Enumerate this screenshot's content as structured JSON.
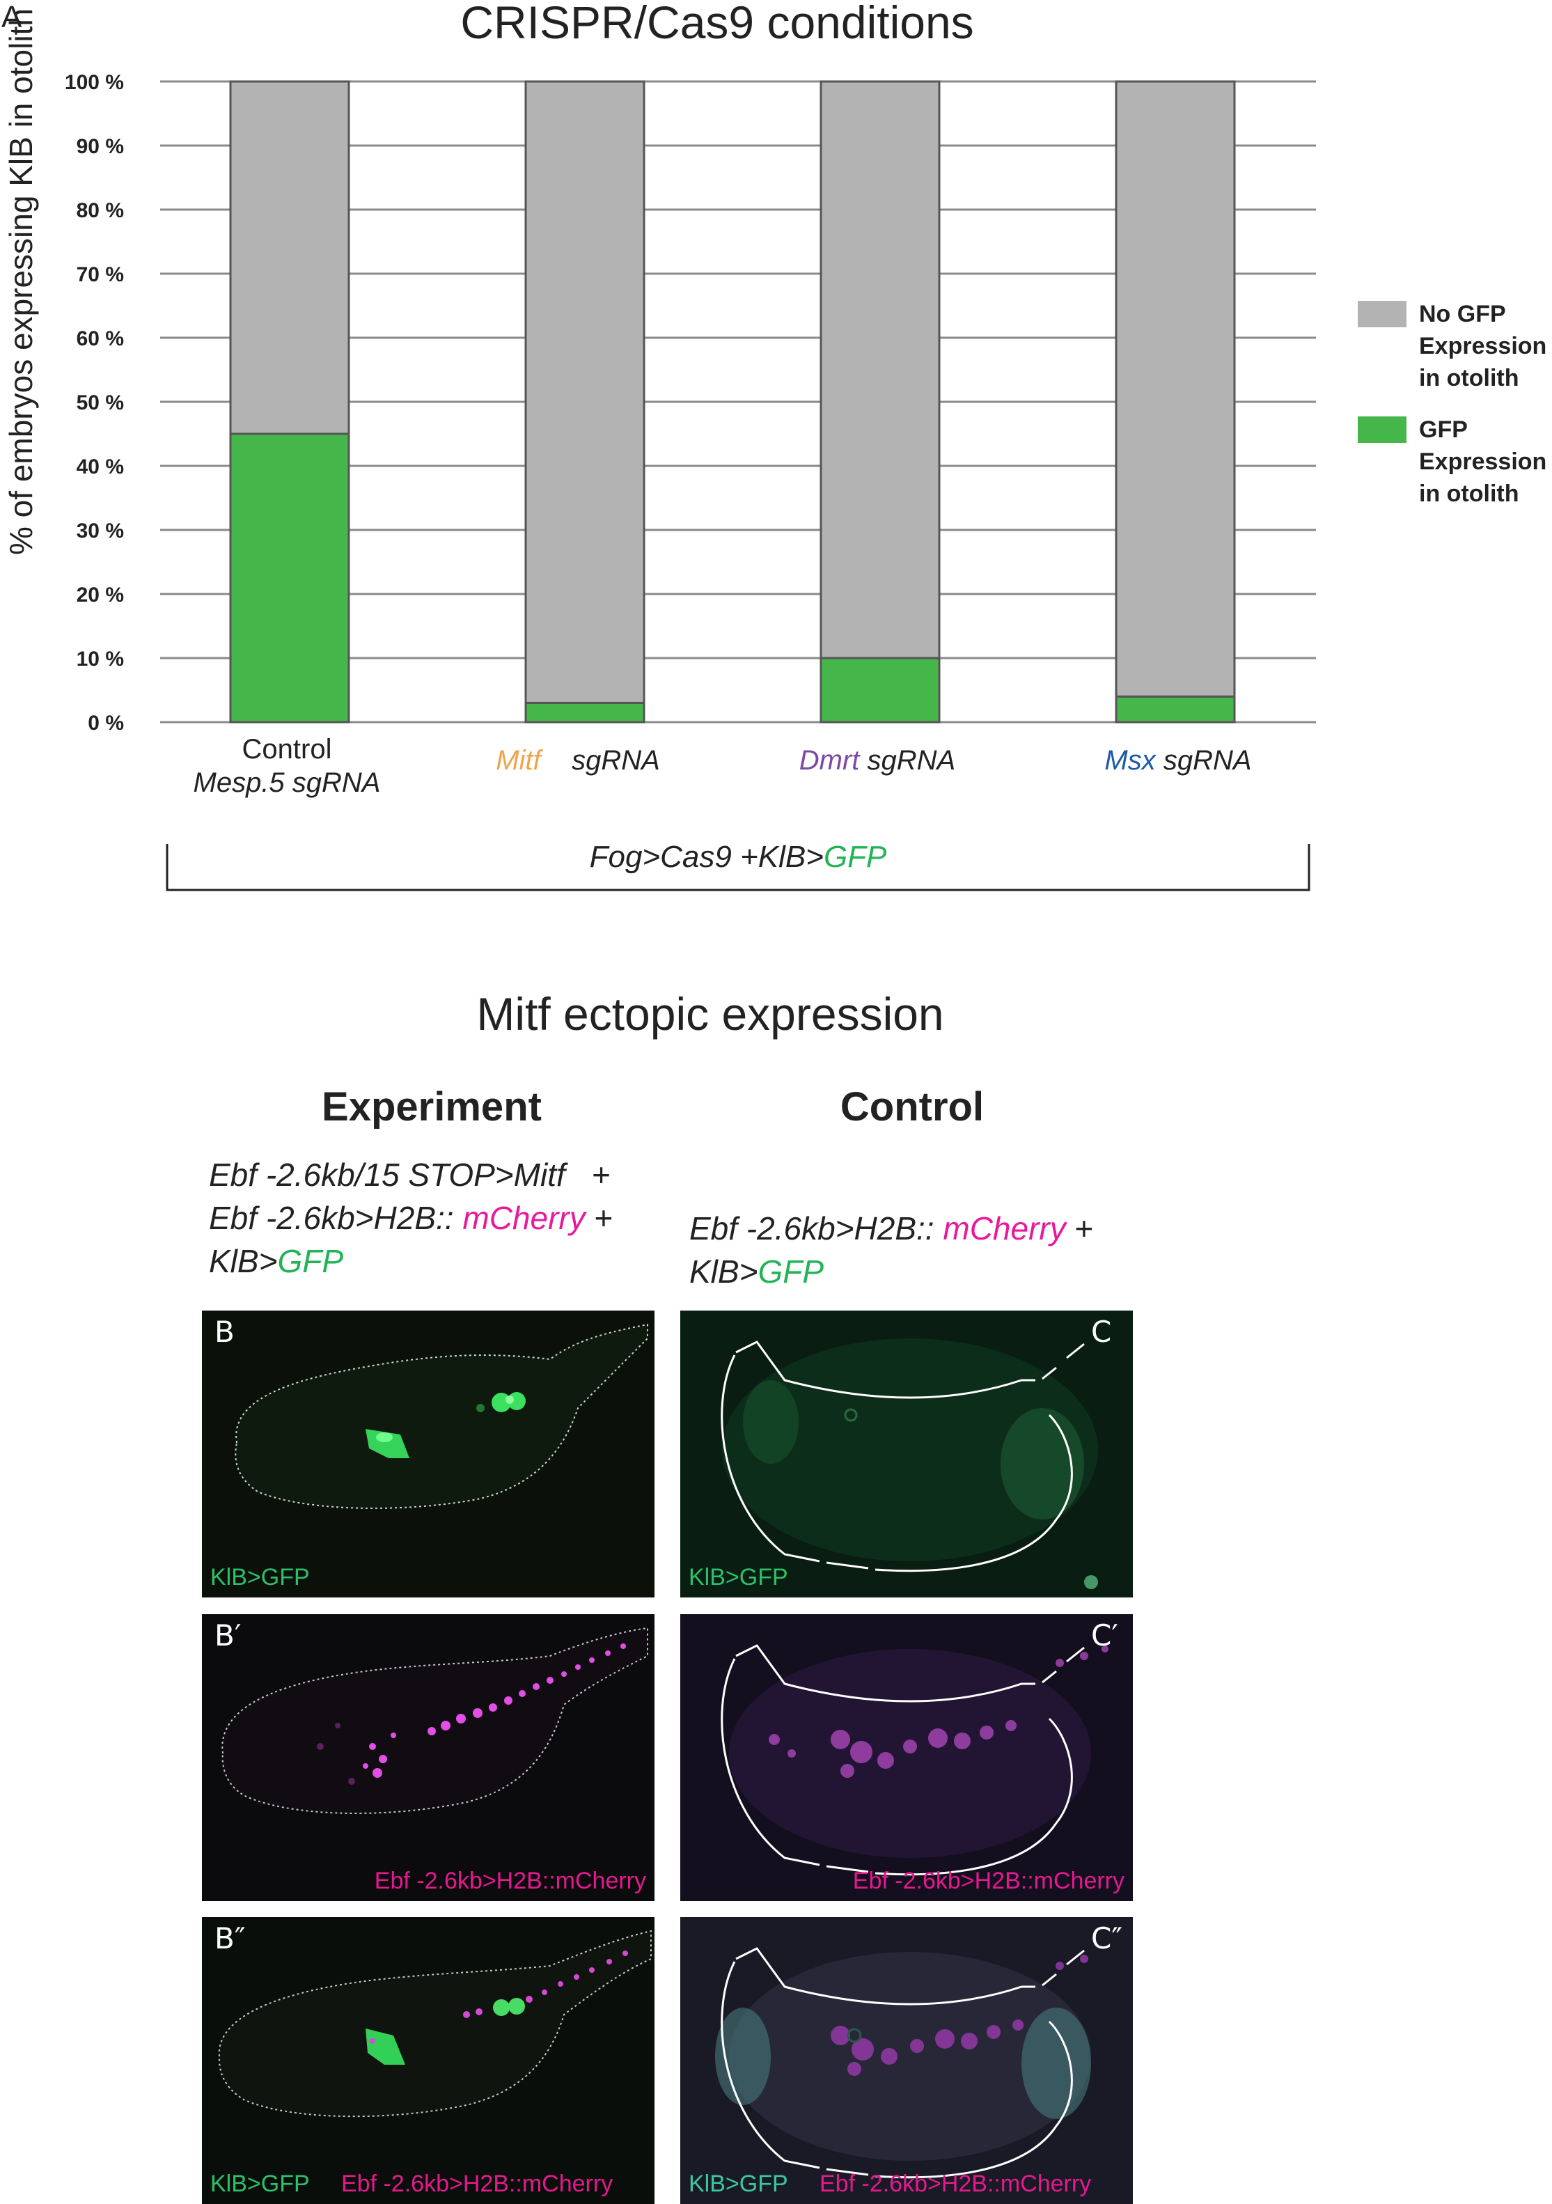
{
  "panel_a": {
    "letter": "A",
    "title": "CRISPR/Cas9 conditions",
    "xaxis_group_label": "Fog>Cas9 +KlB>GFP",
    "legend": [
      {
        "label_lines": [
          "No GFP",
          "Expression",
          "in otolith"
        ],
        "color": "#b3b3b3"
      },
      {
        "label_lines": [
          "GFP",
          "Expression",
          "in otolith"
        ],
        "color": "#45b649"
      }
    ],
    "category_labels": [
      {
        "line1": "Control",
        "line2": "Mesp.5 sgRNA"
      },
      {
        "gene": "Mitf",
        "suffix": "sgRNA",
        "gene_color": "#f0a44a"
      },
      {
        "gene": "Dmrt",
        "suffix": "sgRNA",
        "gene_color": "#7c48a8"
      },
      {
        "gene": "Msx",
        "suffix": "sgRNA",
        "gene_color": "#1d5aa8"
      }
    ]
  },
  "chart_data": {
    "type": "bar",
    "stacked": true,
    "title": "CRISPR/Cas9 conditions",
    "ylabel": "% of embryos expressing KlB in otolith",
    "xlabel": "Fog>Cas9 +KlB>GFP",
    "categories": [
      "Control Mesp.5 sgRNA",
      "Mitf sgRNA",
      "Dmrt sgRNA",
      "Msx sgRNA"
    ],
    "series": [
      {
        "name": "GFP Expression in otolith",
        "values": [
          45,
          3,
          10,
          4
        ],
        "color": "#45b649"
      },
      {
        "name": "No GFP Expression in otolith",
        "values": [
          55,
          97,
          90,
          96
        ],
        "color": "#b3b3b3"
      }
    ],
    "ylim": [
      0,
      100
    ],
    "yticks": [
      "0 %",
      "10 %",
      "20 %",
      "30 %",
      "40 %",
      "50 %",
      "60 %",
      "70 %",
      "80 %",
      "90 %",
      "100 %"
    ],
    "grid": true,
    "legend_position": "right"
  },
  "panel_bc": {
    "title": "Mitf ectopic expression",
    "experiment": {
      "heading": "Experiment",
      "line1": "Ebf -2.6kb/15 STOP>Mitf",
      "line1_plus": "+",
      "line2_a": "Ebf -2.6kb>H2B::",
      "line2_b": "mCherry",
      "line2_plus": "+",
      "line3_a": "KlB>",
      "line3_b": "GFP"
    },
    "control": {
      "heading": "Control",
      "line1_a": "Ebf -2.6kb>H2B::",
      "line1_b": "mCherry",
      "line1_plus": "+",
      "line2_a": "KlB>",
      "line2_b": "GFP"
    },
    "images": {
      "B": {
        "letter": "B",
        "label": "KlB>GFP"
      },
      "B1": {
        "letter": "B′",
        "label": "Ebf -2.6kb>H2B::mCherry"
      },
      "B2": {
        "letter": "B″",
        "label_a": "KlB>GFP",
        "label_b": "Ebf -2.6kb>H2B::mCherry"
      },
      "C": {
        "letter": "C",
        "label": "KlB>GFP"
      },
      "C1": {
        "letter": "C′",
        "label": "Ebf -2.6kb>H2B::mCherry"
      },
      "C2": {
        "letter": "C″",
        "label_a": "KlB>GFP",
        "label_b": "Ebf -2.6kb>H2B::mCherry"
      }
    }
  }
}
